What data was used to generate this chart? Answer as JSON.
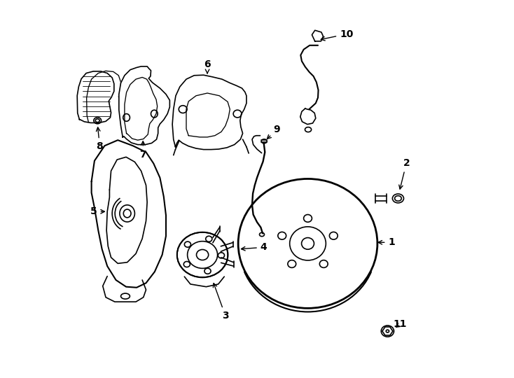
{
  "background_color": "#ffffff",
  "line_color": "#000000",
  "line_width": 1.2,
  "fig_width": 7.34,
  "fig_height": 5.4,
  "dpi": 100
}
